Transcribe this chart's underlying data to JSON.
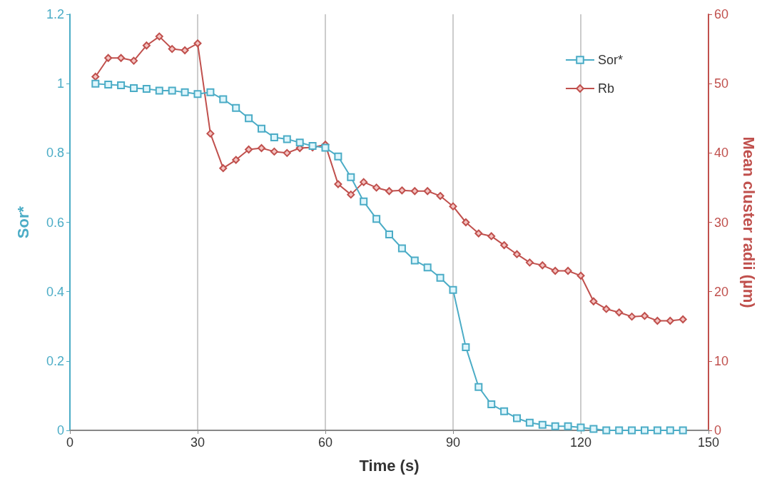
{
  "chart_data": {
    "type": "line",
    "xlabel": "Time (s)",
    "ylabel": "Sor*",
    "y2label": "Mean cluster radii (µm)",
    "x": [
      6,
      9,
      12,
      15,
      18,
      21,
      24,
      27,
      30,
      33,
      36,
      39,
      42,
      45,
      48,
      51,
      54,
      57,
      60,
      63,
      66,
      69,
      72,
      75,
      78,
      81,
      84,
      87,
      90,
      93,
      96,
      99,
      102,
      105,
      108,
      111,
      114,
      117,
      120,
      123,
      126,
      129,
      132,
      135,
      138,
      141,
      144
    ],
    "xlim": [
      0,
      150
    ],
    "xticks": [
      0,
      30,
      60,
      90,
      120,
      150
    ],
    "ylim": [
      0,
      1.2
    ],
    "yticks": [
      0,
      0.2,
      0.4,
      0.6,
      0.8,
      1,
      1.2
    ],
    "y2lim": [
      0,
      60
    ],
    "y2ticks": [
      0,
      10,
      20,
      30,
      40,
      50,
      60
    ],
    "grid": "x",
    "legend": "top right",
    "series": [
      {
        "name": "Sor*",
        "color": "#4bacc6",
        "marker": "square",
        "values": [
          1.0,
          0.997,
          0.995,
          0.987,
          0.985,
          0.98,
          0.98,
          0.975,
          0.97,
          0.975,
          0.955,
          0.93,
          0.9,
          0.87,
          0.845,
          0.84,
          0.83,
          0.82,
          0.815,
          0.79,
          0.73,
          0.66,
          0.61,
          0.565,
          0.525,
          0.49,
          0.47,
          0.44,
          0.405,
          0.24,
          0.125,
          0.075,
          0.055,
          0.035,
          0.022,
          0.016,
          0.012,
          0.012,
          0.008,
          0.004,
          0,
          0,
          0,
          0,
          0,
          0,
          0
        ]
      },
      {
        "name": "Rb",
        "color": "#c0504d",
        "marker": "diamond",
        "axis": "y2",
        "values": [
          51,
          53.7,
          53.7,
          53.3,
          55.5,
          56.8,
          55,
          54.8,
          55.8,
          42.8,
          37.8,
          39,
          40.5,
          40.7,
          40.2,
          40,
          40.7,
          40.8,
          41.2,
          35.5,
          34,
          35.8,
          35,
          34.5,
          34.6,
          34.5,
          34.5,
          33.8,
          32.3,
          30,
          28.4,
          28,
          26.7,
          25.4,
          24.2,
          23.8,
          23,
          23,
          22.3,
          18.6,
          17.5,
          17,
          16.4,
          16.5,
          15.8,
          15.8,
          16
        ]
      }
    ]
  }
}
